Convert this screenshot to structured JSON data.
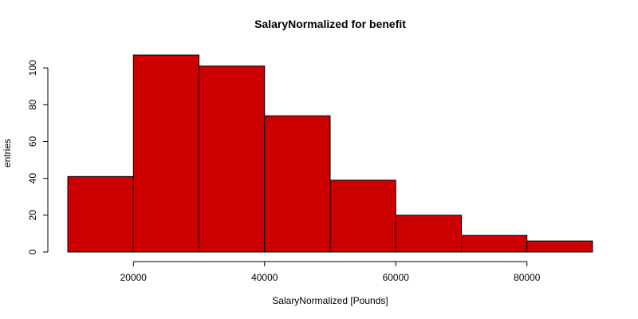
{
  "chart_data": {
    "type": "bar",
    "title": "SalaryNormalized for benefit",
    "xlabel": "SalaryNormalized [Pounds]",
    "ylabel": "entries",
    "bins": [
      {
        "x0": 10000,
        "x1": 20000,
        "count": 41
      },
      {
        "x0": 20000,
        "x1": 30000,
        "count": 107
      },
      {
        "x0": 30000,
        "x1": 40000,
        "count": 101
      },
      {
        "x0": 40000,
        "x1": 50000,
        "count": 74
      },
      {
        "x0": 50000,
        "x1": 60000,
        "count": 39
      },
      {
        "x0": 60000,
        "x1": 70000,
        "count": 20
      },
      {
        "x0": 70000,
        "x1": 80000,
        "count": 9
      },
      {
        "x0": 80000,
        "x1": 90000,
        "count": 6
      }
    ],
    "xticks": [
      20000,
      40000,
      60000,
      80000
    ],
    "yticks": [
      0,
      20,
      40,
      60,
      80,
      100
    ],
    "xlim": [
      10000,
      90000
    ],
    "ylim": [
      0,
      107
    ],
    "bar_color": "#cd0000",
    "grid": false
  }
}
